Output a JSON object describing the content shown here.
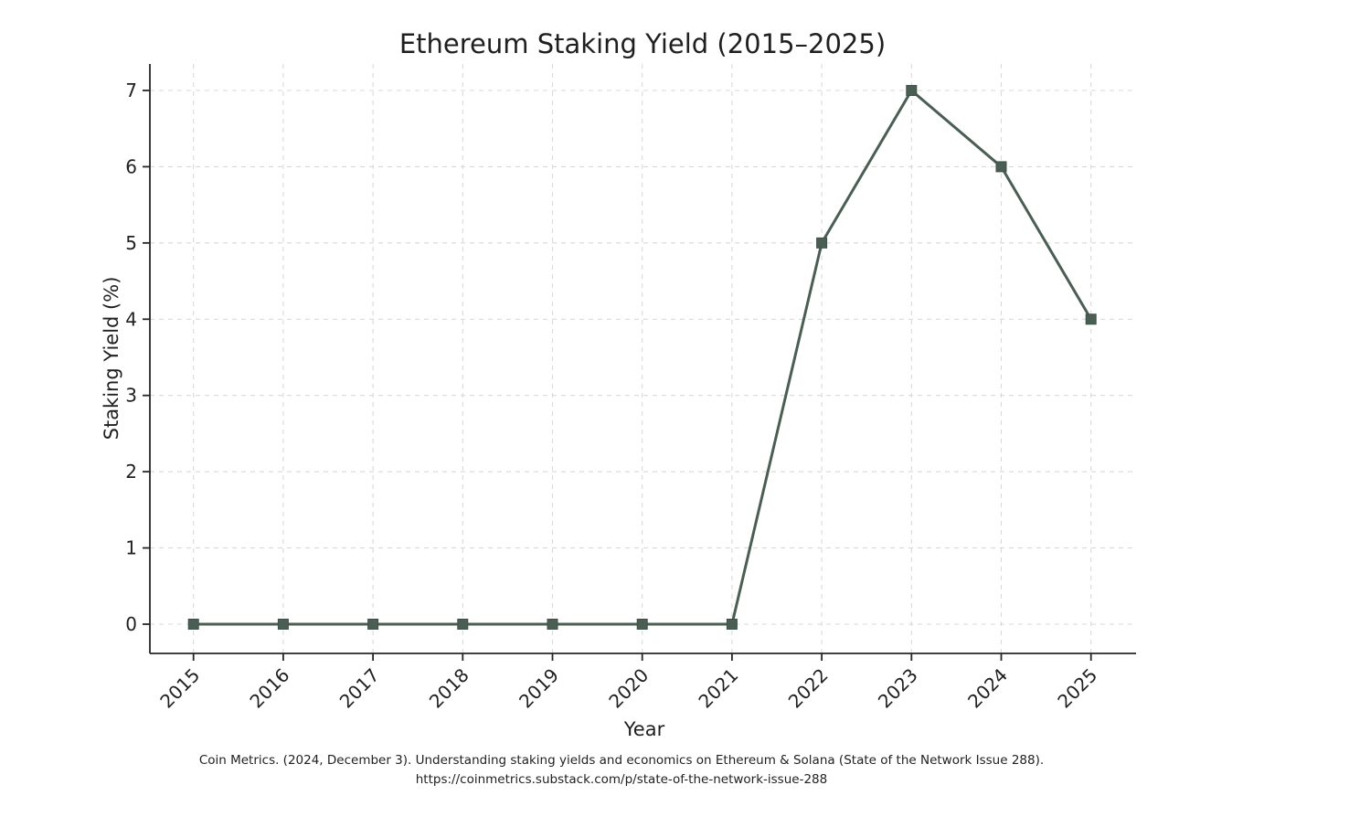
{
  "title": "Ethereum Staking Yield (2015–2025)",
  "chart_data": {
    "type": "line",
    "categories": [
      "2015",
      "2016",
      "2017",
      "2018",
      "2019",
      "2020",
      "2021",
      "2022",
      "2023",
      "2024",
      "2025"
    ],
    "series": [
      {
        "name": "Ethereum Staking Yield",
        "values": [
          0,
          0,
          0,
          0,
          0,
          0,
          0,
          5,
          7,
          6,
          4
        ]
      }
    ],
    "title": "Ethereum Staking Yield (2015–2025)",
    "xlabel": "Year",
    "ylabel": "Staking Yield (%)",
    "yticks": [
      0,
      1,
      2,
      3,
      4,
      5,
      6,
      7
    ],
    "ylim": [
      -0.38,
      7.35
    ],
    "grid": true,
    "grid_style": "dashed",
    "legend": "none",
    "line_color": "#4a5e53",
    "marker": "square",
    "marker_edge_color": "#3d5046",
    "grid_color": "#d9d9d9",
    "spine_color": "#262626"
  },
  "caption": {
    "line1": "Coin Metrics. (2024, December 3). Understanding staking yields and economics on Ethereum & Solana (State of the Network Issue 288).",
    "line2": "https://coinmetrics.substack.com/p/state-of-the-network-issue-288"
  }
}
